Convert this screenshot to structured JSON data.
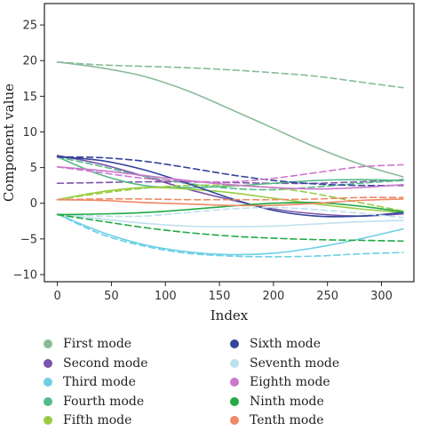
{
  "chart_data": {
    "type": "line",
    "title": "",
    "xlabel": "Index",
    "ylabel": "Component value",
    "xlim": [
      -12,
      330
    ],
    "ylim": [
      -11,
      28
    ],
    "xticks": [
      0,
      50,
      100,
      150,
      200,
      250,
      300
    ],
    "yticks": [
      -10,
      -5,
      0,
      5,
      10,
      15,
      20,
      25
    ],
    "grid": false,
    "legend_position": "bottom",
    "x": [
      0,
      40,
      80,
      120,
      160,
      200,
      240,
      280,
      320
    ],
    "series": [
      {
        "name": "First mode",
        "color": "#88bb99",
        "style": "solid",
        "values": [
          19.8,
          19.0,
          17.8,
          15.8,
          13.2,
          10.5,
          7.8,
          5.5,
          3.7
        ]
      },
      {
        "name": "First mode",
        "color": "#88bb99",
        "style": "dashed",
        "values": [
          19.8,
          19.4,
          19.2,
          19.0,
          18.7,
          18.3,
          17.8,
          17.0,
          16.2
        ]
      },
      {
        "name": "Second mode",
        "color": "#7a55aa",
        "style": "solid",
        "values": [
          6.7,
          5.5,
          3.8,
          2.0,
          0.5,
          -0.8,
          -1.5,
          -1.8,
          -1.5
        ]
      },
      {
        "name": "Second mode",
        "color": "#7a55aa",
        "style": "dashed",
        "values": [
          2.8,
          2.9,
          3.0,
          3.0,
          2.9,
          2.8,
          2.8,
          3.0,
          3.3
        ]
      },
      {
        "name": "Third mode",
        "color": "#6ccfe6",
        "style": "solid",
        "values": [
          -1.5,
          -4.0,
          -5.8,
          -6.8,
          -7.2,
          -7.0,
          -6.2,
          -5.0,
          -3.6
        ]
      },
      {
        "name": "Third mode",
        "color": "#6ccfe6",
        "style": "dashed",
        "values": [
          -1.5,
          -4.3,
          -6.0,
          -7.0,
          -7.4,
          -7.5,
          -7.4,
          -7.1,
          -6.9
        ]
      },
      {
        "name": "Fourth mode",
        "color": "#55bb88",
        "style": "solid",
        "values": [
          6.5,
          4.0,
          2.5,
          2.2,
          2.4,
          2.8,
          3.2,
          3.3,
          3.2
        ]
      },
      {
        "name": "Fourth mode",
        "color": "#55bb88",
        "style": "dashed",
        "values": [
          6.5,
          5.2,
          3.8,
          2.8,
          2.1,
          1.9,
          2.3,
          2.8,
          3.2
        ]
      },
      {
        "name": "Fifth mode",
        "color": "#99cc44",
        "style": "solid",
        "values": [
          0.5,
          1.6,
          2.2,
          2.0,
          1.5,
          0.7,
          -0.1,
          -0.8,
          -1.3
        ]
      },
      {
        "name": "Fifth mode",
        "color": "#99cc44",
        "style": "dashed",
        "values": [
          0.5,
          1.4,
          2.1,
          2.5,
          2.5,
          2.2,
          1.3,
          0.1,
          -1.1
        ]
      },
      {
        "name": "Sixth mode",
        "color": "#334499",
        "style": "solid",
        "values": [
          6.5,
          6.0,
          4.7,
          2.8,
          0.7,
          -1.0,
          -1.8,
          -1.8,
          -1.3
        ]
      },
      {
        "name": "Sixth mode",
        "color": "#334499",
        "style": "dashed",
        "values": [
          6.5,
          6.4,
          5.9,
          5.0,
          4.0,
          3.2,
          2.7,
          2.5,
          2.5
        ]
      },
      {
        "name": "Seventh mode",
        "color": "#bfe0ee",
        "style": "solid",
        "values": [
          -1.5,
          -2.2,
          -2.8,
          -3.2,
          -3.3,
          -3.2,
          -2.9,
          -2.6,
          -2.4
        ]
      },
      {
        "name": "Seventh mode",
        "color": "#bfe0ee",
        "style": "dashed",
        "values": [
          -1.5,
          -1.8,
          -1.8,
          -1.3,
          -0.8,
          -0.6,
          -0.9,
          -1.4,
          -2.0
        ]
      },
      {
        "name": "Eighth mode",
        "color": "#cc77cc",
        "style": "solid",
        "values": [
          5.1,
          4.6,
          3.9,
          3.2,
          2.6,
          2.2,
          2.0,
          2.2,
          2.6
        ]
      },
      {
        "name": "Eighth mode",
        "color": "#cc77cc",
        "style": "dashed",
        "values": [
          5.1,
          4.3,
          3.5,
          3.1,
          3.0,
          3.5,
          4.3,
          5.1,
          5.4
        ]
      },
      {
        "name": "Ninth mode",
        "color": "#22aa44",
        "style": "solid",
        "values": [
          -1.6,
          -1.5,
          -1.3,
          -0.9,
          -0.4,
          0.0,
          0.1,
          -0.4,
          -1.2
        ]
      },
      {
        "name": "Ninth mode",
        "color": "#22aa44",
        "style": "dashed",
        "values": [
          -1.6,
          -2.5,
          -3.4,
          -4.1,
          -4.6,
          -4.9,
          -5.1,
          -5.2,
          -5.3
        ]
      },
      {
        "name": "Tenth mode",
        "color": "#ee8866",
        "style": "solid",
        "values": [
          0.5,
          0.4,
          0.1,
          -0.1,
          -0.3,
          -0.3,
          0.0,
          0.4,
          0.6
        ]
      },
      {
        "name": "Tenth mode",
        "color": "#ee8866",
        "style": "dashed",
        "values": [
          0.5,
          0.6,
          0.6,
          0.5,
          0.5,
          0.5,
          0.6,
          0.8,
          0.8
        ]
      }
    ]
  },
  "legend": [
    {
      "label": "First mode",
      "color": "#88bb99"
    },
    {
      "label": "Second mode",
      "color": "#7a55aa"
    },
    {
      "label": "Third mode",
      "color": "#6ccfe6"
    },
    {
      "label": "Fourth mode",
      "color": "#55bb88"
    },
    {
      "label": "Fifth mode",
      "color": "#99cc44"
    },
    {
      "label": "Sixth mode",
      "color": "#334499"
    },
    {
      "label": "Seventh mode",
      "color": "#bfe0ee"
    },
    {
      "label": "Eighth mode",
      "color": "#cc77cc"
    },
    {
      "label": "Ninth mode",
      "color": "#22aa44"
    },
    {
      "label": "Tenth mode",
      "color": "#ee8866"
    }
  ]
}
